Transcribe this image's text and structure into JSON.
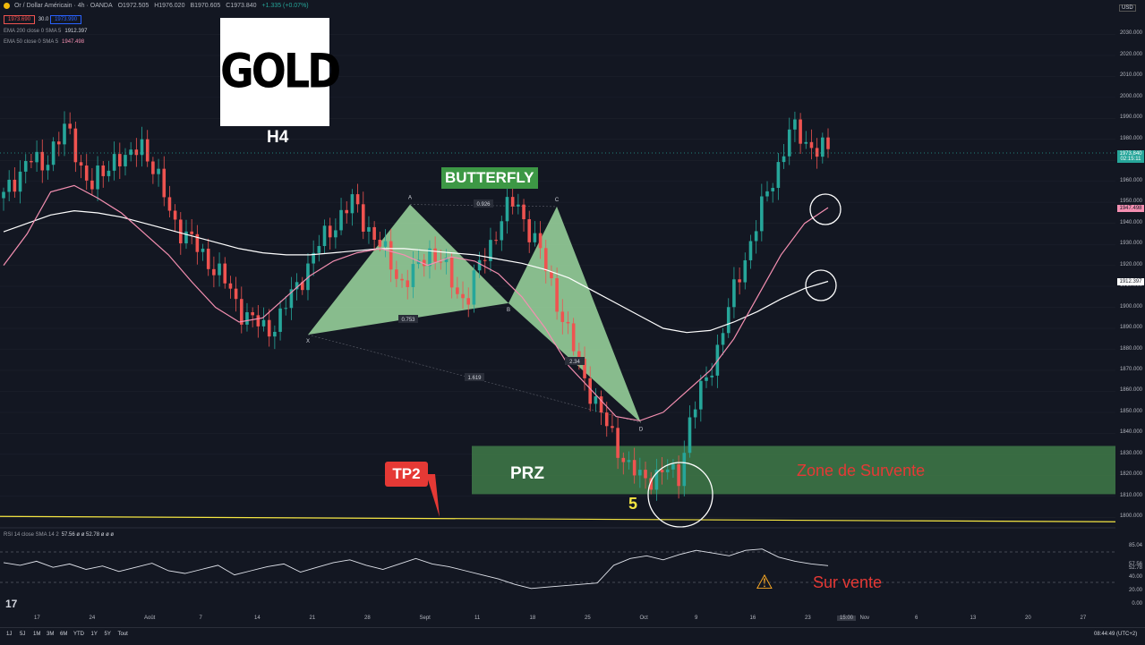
{
  "header": {
    "symbol": "Or / Dollar Américain · 4h · OANDA",
    "open": "O1972.505",
    "high": "H1976.020",
    "low": "B1970.605",
    "close": "C1973.840",
    "change": "+1.335 (+0.07%)",
    "bid": "1973.690",
    "spread": "30.0",
    "ask": "1973.990"
  },
  "indicators": {
    "ema200_label": "EMA 200 close 0 SMA 5",
    "ema200_value": "1912.397",
    "ema50_label": "EMA 50 close 0 SMA 5",
    "ema50_value": "1947.498",
    "rsi_label": "RSI 14 close SMA 14 2",
    "rsi_values": "57.56  ø  ø  52.78  ø  ø  ø"
  },
  "annotations": {
    "gold": "GOLD",
    "timeframe": "H4",
    "pattern": "BUTTERFLY",
    "prz": "PRZ",
    "zone": "Zone de Survente",
    "wave": "5",
    "tp": "TP2",
    "oversold": "Sur vente",
    "warning_icon": "warning-icon"
  },
  "colors": {
    "background": "#131722",
    "up": "#26a69a",
    "down": "#ef5350",
    "ema50": "#f48fb1",
    "ema200": "#ffffff",
    "pattern_fill": "#9ed9a0",
    "prz_fill": "#3f7a48",
    "tp_line": "#f5e642",
    "alert": "#e53935"
  },
  "chart_data": {
    "type": "candlestick",
    "title": "",
    "y_axis": {
      "currency": "USD",
      "range": [
        1795,
        2040
      ],
      "ticks": [
        "2030.000",
        "2020.000",
        "2010.000",
        "2000.000",
        "1990.000",
        "1980.000",
        "1970.000",
        "1960.000",
        "1950.000",
        "1940.000",
        "1930.000",
        "1920.000",
        "1910.000",
        "1900.000",
        "1890.000",
        "1880.000",
        "1870.000",
        "1860.000",
        "1850.000",
        "1840.000",
        "1830.000",
        "1820.000",
        "1810.000",
        "1800.000"
      ]
    },
    "x_axis": {
      "ticks": [
        "17",
        "24",
        "Août",
        "7",
        "14",
        "21",
        "28",
        "Sept",
        "11",
        "18",
        "25",
        "Oct",
        "9",
        "16",
        "23",
        "Nov",
        "6",
        "13",
        "20",
        "27"
      ],
      "time_label": "15:00"
    },
    "last_price": {
      "value": "1973.840",
      "countdown": "02:15:11"
    },
    "ema200_last": "1912.397",
    "ema50_last": "1947.498",
    "close_series": [
      1952,
      1962,
      1972,
      1965,
      1978,
      1985,
      1970,
      1958,
      1963,
      1974,
      1968,
      1980,
      1966,
      1950,
      1938,
      1931,
      1925,
      1918,
      1909,
      1899,
      1893,
      1889,
      1894,
      1905,
      1916,
      1927,
      1936,
      1944,
      1950,
      1940,
      1930,
      1921,
      1911,
      1917,
      1928,
      1922,
      1910,
      1903,
      1918,
      1931,
      1944,
      1951,
      1938,
      1925,
      1909,
      1890,
      1874,
      1860,
      1846,
      1836,
      1824,
      1818,
      1820,
      1822,
      1819,
      1848,
      1862,
      1878,
      1898,
      1918,
      1935,
      1952,
      1968,
      1985,
      1980,
      1976,
      1973.84
    ],
    "ema200_series": [
      1936,
      1940,
      1944,
      1946,
      1945,
      1943,
      1940,
      1937,
      1934,
      1931,
      1928,
      1926,
      1925,
      1925,
      1926,
      1927,
      1928,
      1928,
      1927,
      1926,
      1925,
      1923,
      1921,
      1918,
      1914,
      1908,
      1902,
      1896,
      1890,
      1888,
      1889,
      1893,
      1898,
      1904,
      1909,
      1912.397
    ],
    "ema50_series": [
      1920,
      1935,
      1955,
      1958,
      1952,
      1945,
      1935,
      1925,
      1912,
      1900,
      1893,
      1895,
      1905,
      1915,
      1922,
      1926,
      1928,
      1925,
      1920,
      1924,
      1922,
      1916,
      1905,
      1890,
      1872,
      1860,
      1848,
      1846,
      1850,
      1860,
      1870,
      1885,
      1905,
      1925,
      1940,
      1947.498
    ],
    "harmonic_pattern": {
      "name": "BUTTERFLY",
      "points": [
        {
          "label": "X",
          "price": 1887
        },
        {
          "label": "A",
          "price": 1949
        },
        {
          "label": "B",
          "price": 1902
        },
        {
          "label": "C",
          "price": 1948
        },
        {
          "label": "D",
          "price": 1845
        }
      ],
      "ratios": {
        "AB": "0.753",
        "BC": "0.926",
        "CD": "2.34",
        "XD": "1.619"
      }
    },
    "prz_zone": {
      "from": 1811,
      "to": 1834,
      "label": "PRZ / Zone de Survente"
    },
    "tp2_level": 1800,
    "rsi": {
      "range": [
        0,
        100
      ],
      "ticks": [
        "85.04",
        "57.56",
        "52.78",
        "40.00",
        "20.00",
        "0.00"
      ],
      "series": [
        62,
        58,
        64,
        55,
        60,
        52,
        57,
        49,
        55,
        61,
        50,
        46,
        52,
        58,
        44,
        50,
        56,
        60,
        48,
        55,
        62,
        66,
        58,
        52,
        60,
        68,
        60,
        56,
        50,
        44,
        38,
        30,
        24,
        26,
        28,
        30,
        32,
        58,
        68,
        72,
        66,
        74,
        80,
        76,
        72,
        80,
        82,
        70,
        64,
        60,
        57.56
      ]
    }
  }
}
